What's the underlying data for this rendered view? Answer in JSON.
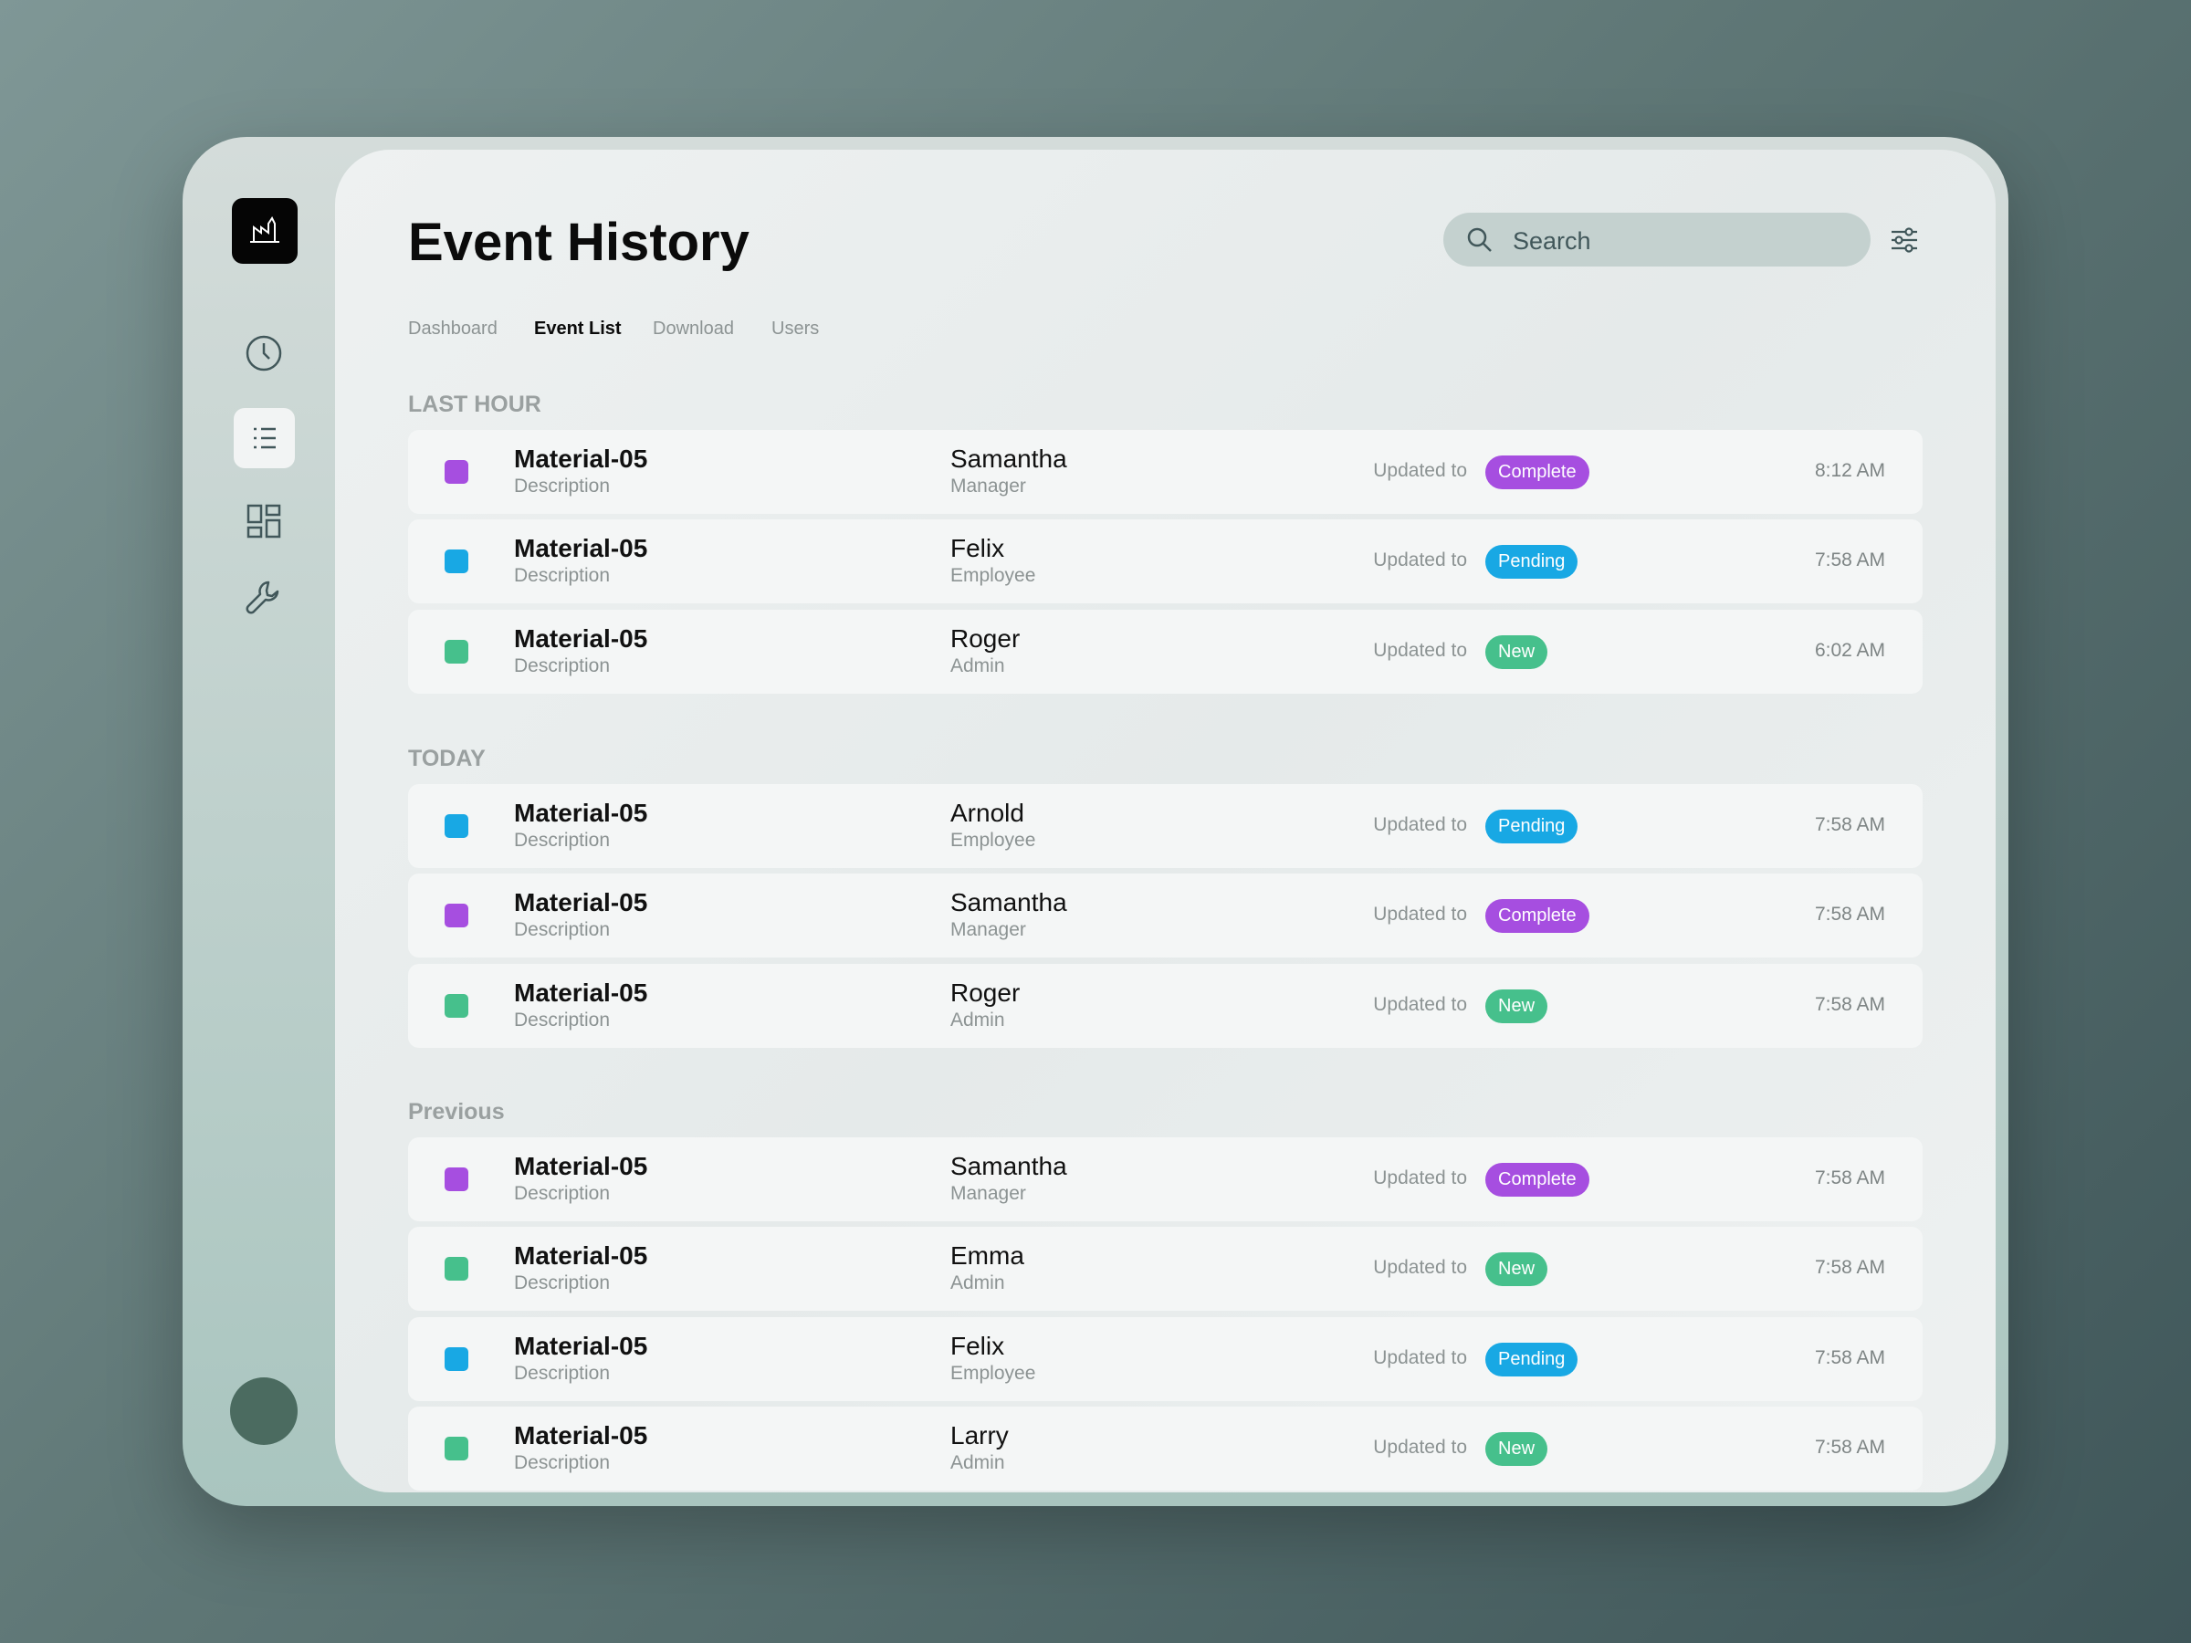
{
  "header": {
    "title": "Event History",
    "search_placeholder": "Search"
  },
  "tabs": [
    {
      "label": "Dashboard",
      "active": false
    },
    {
      "label": "Event List",
      "active": true
    },
    {
      "label": "Download",
      "active": false
    },
    {
      "label": "Users",
      "active": false
    }
  ],
  "sections": [
    {
      "label": "LAST HOUR",
      "rows": [
        {
          "title": "Material-05",
          "description": "Description",
          "name": "Samantha",
          "role": "Manager",
          "prefix": "Updated to",
          "status": "Complete",
          "color": "#a64ee0",
          "time": "8:12 AM"
        },
        {
          "title": "Material-05",
          "description": "Description",
          "name": "Felix",
          "role": "Employee",
          "prefix": "Updated to",
          "status": "Pending",
          "color": "#18a8e4",
          "time": "7:58 AM"
        },
        {
          "title": "Material-05",
          "description": "Description",
          "name": "Roger",
          "role": "Admin",
          "prefix": "Updated to",
          "status": "New",
          "color": "#46c08c",
          "time": "6:02 AM"
        }
      ]
    },
    {
      "label": "TODAY",
      "rows": [
        {
          "title": "Material-05",
          "description": "Description",
          "name": "Arnold",
          "role": "Employee",
          "prefix": "Updated to",
          "status": "Pending",
          "color": "#18a8e4",
          "time": "7:58 AM"
        },
        {
          "title": "Material-05",
          "description": "Description",
          "name": "Samantha",
          "role": "Manager",
          "prefix": "Updated to",
          "status": "Complete",
          "color": "#a64ee0",
          "time": "7:58 AM"
        },
        {
          "title": "Material-05",
          "description": "Description",
          "name": "Roger",
          "role": "Admin",
          "prefix": "Updated to",
          "status": "New",
          "color": "#46c08c",
          "time": "7:58 AM"
        }
      ]
    },
    {
      "label": "Previous",
      "rows": [
        {
          "title": "Material-05",
          "description": "Description",
          "name": "Samantha",
          "role": "Manager",
          "prefix": "Updated to",
          "status": "Complete",
          "color": "#a64ee0",
          "time": "7:58 AM"
        },
        {
          "title": "Material-05",
          "description": "Description",
          "name": "Emma",
          "role": "Admin",
          "prefix": "Updated to",
          "status": "New",
          "color": "#46c08c",
          "time": "7:58 AM"
        },
        {
          "title": "Material-05",
          "description": "Description",
          "name": "Felix",
          "role": "Employee",
          "prefix": "Updated to",
          "status": "Pending",
          "color": "#18a8e4",
          "time": "7:58 AM"
        },
        {
          "title": "Material-05",
          "description": "Description",
          "name": "Larry",
          "role": "Admin",
          "prefix": "Updated to",
          "status": "New",
          "color": "#46c08c",
          "time": "7:58 AM"
        }
      ]
    }
  ]
}
